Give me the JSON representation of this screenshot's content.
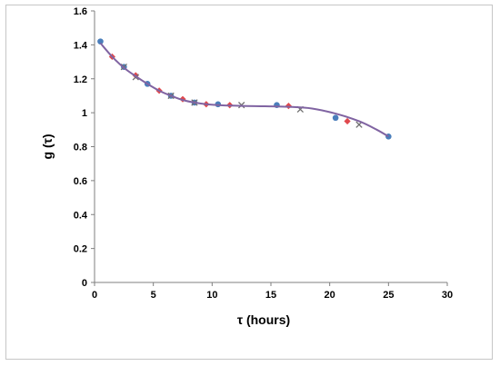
{
  "chart_data": {
    "type": "scatter",
    "xlabel": "τ (hours)",
    "ylabel": "g (τ)",
    "xlim": [
      0,
      30
    ],
    "ylim": [
      0,
      1.6
    ],
    "x_ticks": [
      0,
      5,
      10,
      15,
      20,
      25,
      30
    ],
    "y_ticks": [
      0,
      0.2,
      0.4,
      0.6,
      0.8,
      1,
      1.2,
      1.4,
      1.6
    ],
    "grid": false,
    "legend": "none",
    "series": [
      {
        "marker": "circle",
        "color": "#4a7ebb",
        "x": [
          0.5,
          2.5,
          4.5,
          6.5,
          8.5,
          10.5,
          15.5,
          20.5,
          25
        ],
        "y": [
          1.42,
          1.27,
          1.17,
          1.1,
          1.06,
          1.05,
          1.045,
          0.97,
          0.86
        ]
      },
      {
        "marker": "diamond",
        "color": "#e0484d",
        "x": [
          1.5,
          3.5,
          5.5,
          7.5,
          9.5,
          11.5,
          16.5,
          21.5
        ],
        "y": [
          1.33,
          1.22,
          1.13,
          1.08,
          1.05,
          1.045,
          1.04,
          0.95
        ]
      },
      {
        "marker": "x",
        "color": "#6f6f6f",
        "x": [
          2.5,
          3.5,
          6.5,
          8.5,
          12.5,
          17.5,
          22.5
        ],
        "y": [
          1.27,
          1.21,
          1.1,
          1.06,
          1.045,
          1.02,
          0.93
        ]
      },
      {
        "marker": "none",
        "style": "line",
        "color": "#8064a2",
        "x": [
          0.5,
          1.5,
          2.5,
          3.5,
          4.5,
          5.5,
          6.5,
          7.5,
          8.5,
          9.5,
          10.5,
          12.5,
          14.5,
          16.5,
          18.5,
          20.5,
          22.5,
          24,
          25
        ],
        "y": [
          1.41,
          1.33,
          1.265,
          1.215,
          1.17,
          1.13,
          1.1,
          1.075,
          1.06,
          1.05,
          1.045,
          1.04,
          1.038,
          1.035,
          1.025,
          0.995,
          0.95,
          0.9,
          0.86
        ]
      }
    ]
  }
}
